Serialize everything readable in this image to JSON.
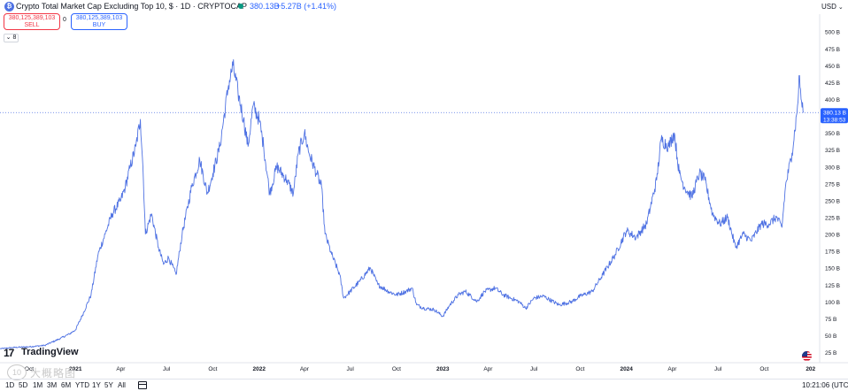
{
  "header": {
    "symbol_icon": "bitcoin-symbol-icon",
    "title": "Crypto Total Market Cap Excluding Top 10, $ · 1D · CRYPTOCAP",
    "price": "380.13B",
    "change": "+5.27B (+1.41%)",
    "currency": "USD",
    "status_color": "#089981"
  },
  "trade": {
    "sell_price": "380,125,389,103",
    "sell_label": "SELL",
    "buy_price": "380,125,389,103",
    "buy_label": "BUY",
    "spread": "0"
  },
  "indicators_toggle": "8",
  "chart_data": {
    "type": "line",
    "color": "#4f72e3",
    "y_unit": "B",
    "yticks": [
      "500 B",
      "475 B",
      "450 B",
      "425 B",
      "400 B",
      "350 B",
      "325 B",
      "300 B",
      "275 B",
      "250 B",
      "225 B",
      "200 B",
      "175 B",
      "150 B",
      "125 B",
      "100 B",
      "75 B",
      "50 B",
      "25 B"
    ],
    "ytick_values": [
      500,
      475,
      450,
      425,
      400,
      350,
      325,
      300,
      275,
      250,
      225,
      200,
      175,
      150,
      125,
      100,
      75,
      50,
      25
    ],
    "ylim": [
      12,
      518
    ],
    "xticks": [
      "Oct",
      "2021",
      "Apr",
      "Jul",
      "Oct",
      "2022",
      "Apr",
      "Jul",
      "Oct",
      "2023",
      "Apr",
      "Jul",
      "Oct",
      "2024",
      "Apr",
      "Jul",
      "Oct",
      "202"
    ],
    "xtick_dates": [
      "2020-10-01",
      "2021-01-01",
      "2021-04-01",
      "2021-07-01",
      "2021-10-01",
      "2022-01-01",
      "2022-04-01",
      "2022-07-01",
      "2022-10-01",
      "2023-01-01",
      "2023-04-01",
      "2023-07-01",
      "2023-10-01",
      "2024-01-01",
      "2024-04-01",
      "2024-07-01",
      "2024-10-01",
      "2025-01-01"
    ],
    "xlim": [
      "2020-08-04",
      "2025-01-12"
    ],
    "year_ticks": [
      "2021",
      "2022",
      "2023",
      "2024",
      "202"
    ],
    "current_price_label": "380.13 B",
    "countdown": "13:38:53",
    "grid": false,
    "points": [
      [
        "2020-08-04",
        30
      ],
      [
        "2020-09-01",
        32
      ],
      [
        "2020-10-01",
        33
      ],
      [
        "2020-11-01",
        35
      ],
      [
        "2020-12-01",
        45
      ],
      [
        "2020-12-20",
        52
      ],
      [
        "2021-01-01",
        58
      ],
      [
        "2021-01-15",
        80
      ],
      [
        "2021-02-01",
        110
      ],
      [
        "2021-02-15",
        170
      ],
      [
        "2021-03-01",
        200
      ],
      [
        "2021-03-15",
        230
      ],
      [
        "2021-04-01",
        250
      ],
      [
        "2021-04-10",
        270
      ],
      [
        "2021-04-20",
        300
      ],
      [
        "2021-05-01",
        330
      ],
      [
        "2021-05-10",
        370
      ],
      [
        "2021-05-15",
        300
      ],
      [
        "2021-05-20",
        200
      ],
      [
        "2021-06-01",
        230
      ],
      [
        "2021-06-15",
        180
      ],
      [
        "2021-06-25",
        155
      ],
      [
        "2021-07-05",
        165
      ],
      [
        "2021-07-20",
        140
      ],
      [
        "2021-08-01",
        200
      ],
      [
        "2021-08-20",
        270
      ],
      [
        "2021-09-05",
        310
      ],
      [
        "2021-09-20",
        260
      ],
      [
        "2021-10-01",
        290
      ],
      [
        "2021-10-15",
        330
      ],
      [
        "2021-11-01",
        420
      ],
      [
        "2021-11-10",
        450
      ],
      [
        "2021-11-20",
        410
      ],
      [
        "2021-12-01",
        370
      ],
      [
        "2021-12-10",
        330
      ],
      [
        "2021-12-20",
        390
      ],
      [
        "2022-01-01",
        370
      ],
      [
        "2022-01-10",
        330
      ],
      [
        "2022-01-22",
        260
      ],
      [
        "2022-02-05",
        300
      ],
      [
        "2022-02-25",
        280
      ],
      [
        "2022-03-10",
        260
      ],
      [
        "2022-03-20",
        320
      ],
      [
        "2022-04-01",
        350
      ],
      [
        "2022-04-10",
        320
      ],
      [
        "2022-04-25",
        290
      ],
      [
        "2022-05-05",
        270
      ],
      [
        "2022-05-12",
        200
      ],
      [
        "2022-05-25",
        170
      ],
      [
        "2022-06-10",
        140
      ],
      [
        "2022-06-18",
        105
      ],
      [
        "2022-07-01",
        115
      ],
      [
        "2022-07-20",
        130
      ],
      [
        "2022-08-10",
        150
      ],
      [
        "2022-08-25",
        125
      ],
      [
        "2022-09-15",
        115
      ],
      [
        "2022-10-01",
        110
      ],
      [
        "2022-10-20",
        115
      ],
      [
        "2022-11-01",
        120
      ],
      [
        "2022-11-10",
        95
      ],
      [
        "2022-11-25",
        90
      ],
      [
        "2022-12-15",
        88
      ],
      [
        "2023-01-01",
        78
      ],
      [
        "2023-01-15",
        95
      ],
      [
        "2023-02-01",
        110
      ],
      [
        "2023-02-15",
        115
      ],
      [
        "2023-03-10",
        100
      ],
      [
        "2023-03-25",
        115
      ],
      [
        "2023-04-15",
        120
      ],
      [
        "2023-05-01",
        110
      ],
      [
        "2023-06-01",
        100
      ],
      [
        "2023-06-15",
        90
      ],
      [
        "2023-07-01",
        105
      ],
      [
        "2023-07-20",
        108
      ],
      [
        "2023-08-20",
        95
      ],
      [
        "2023-09-15",
        100
      ],
      [
        "2023-10-01",
        108
      ],
      [
        "2023-10-25",
        115
      ],
      [
        "2023-11-15",
        140
      ],
      [
        "2023-12-10",
        170
      ],
      [
        "2024-01-01",
        205
      ],
      [
        "2024-01-20",
        195
      ],
      [
        "2024-02-10",
        215
      ],
      [
        "2024-03-01",
        280
      ],
      [
        "2024-03-10",
        340
      ],
      [
        "2024-03-25",
        330
      ],
      [
        "2024-04-05",
        350
      ],
      [
        "2024-04-15",
        290
      ],
      [
        "2024-04-25",
        270
      ],
      [
        "2024-05-10",
        255
      ],
      [
        "2024-05-25",
        290
      ],
      [
        "2024-06-05",
        280
      ],
      [
        "2024-06-20",
        230
      ],
      [
        "2024-07-05",
        215
      ],
      [
        "2024-07-20",
        225
      ],
      [
        "2024-08-05",
        180
      ],
      [
        "2024-08-20",
        200
      ],
      [
        "2024-09-05",
        190
      ],
      [
        "2024-09-25",
        215
      ],
      [
        "2024-10-10",
        215
      ],
      [
        "2024-10-25",
        225
      ],
      [
        "2024-11-05",
        210
      ],
      [
        "2024-11-12",
        270
      ],
      [
        "2024-11-25",
        320
      ],
      [
        "2024-12-05",
        380
      ],
      [
        "2024-12-10",
        435
      ],
      [
        "2024-12-13",
        400
      ],
      [
        "2024-12-18",
        380
      ]
    ]
  },
  "branding": {
    "logo_mark": "17",
    "logo_name": "TradingView",
    "watermark_badge": "10",
    "watermark_text": "大概略图"
  },
  "flag_icon": "us-flag-icon",
  "toolbar": {
    "ranges": [
      "1D",
      "5D",
      "1M",
      "3M",
      "6M",
      "YTD",
      "1Y",
      "5Y",
      "All"
    ],
    "calendar_icon": "calendar-icon",
    "clock": "10:21:06 (UTC)"
  }
}
